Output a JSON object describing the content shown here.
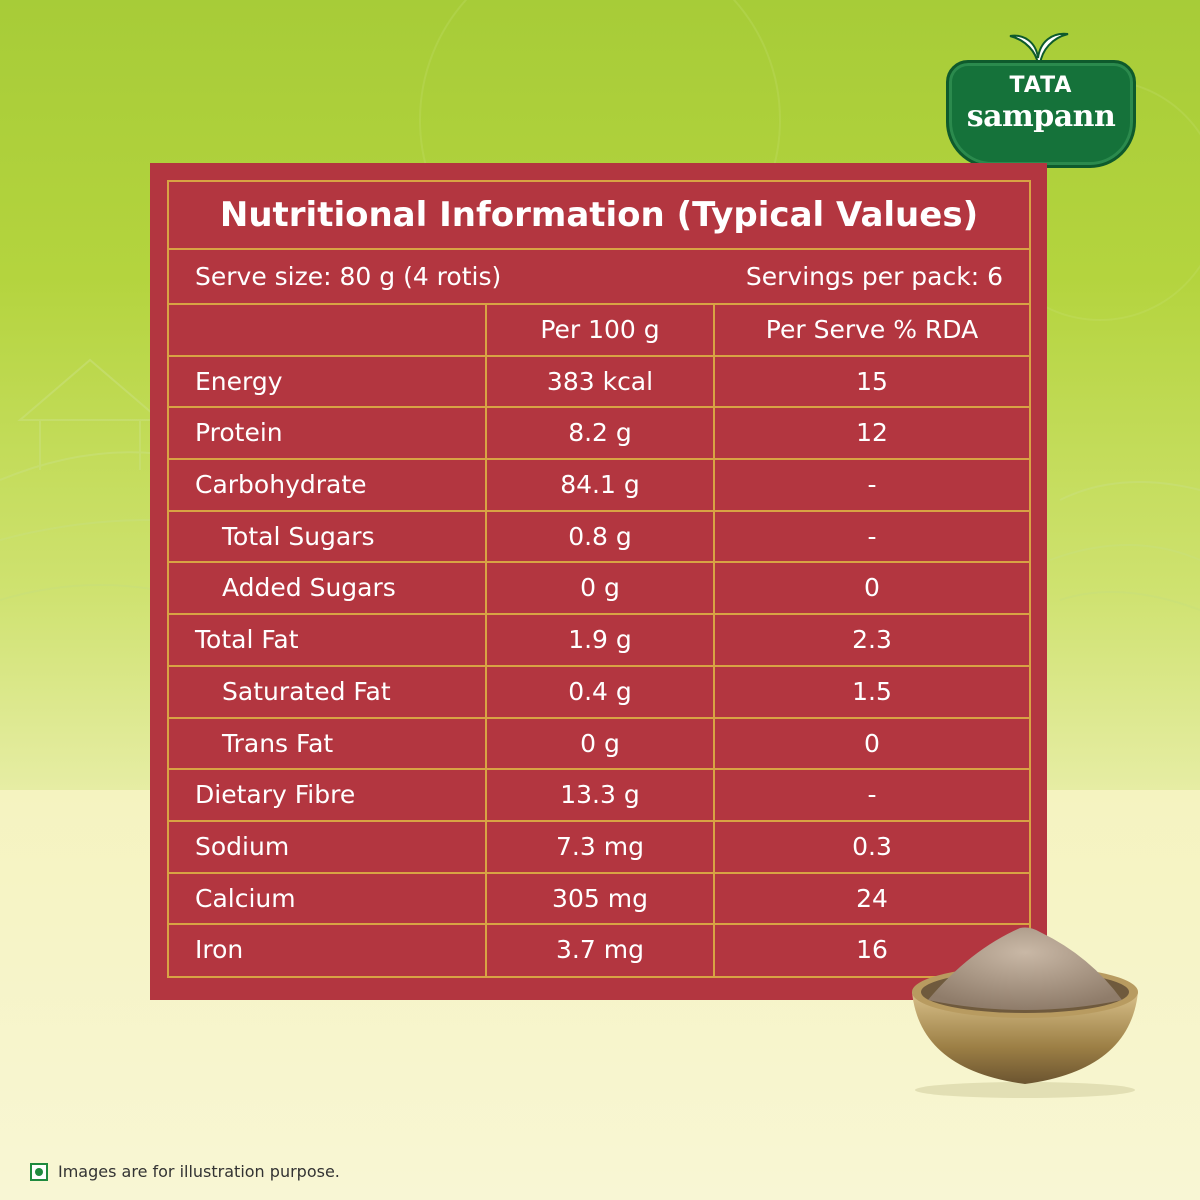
{
  "brand": {
    "line1": "TATA",
    "line2": "sampann",
    "badge_color": "#15723a"
  },
  "card": {
    "title": "Nutritional Information (Typical Values)",
    "serve_size": "Serve size: 80 g (4 rotis)",
    "servings": "Servings per pack: 6",
    "bg_color": "#b33640",
    "border_color": "#d8a344"
  },
  "table": {
    "headers": [
      "",
      "Per 100 g",
      "Per Serve % RDA"
    ],
    "rows": [
      {
        "name": "Energy",
        "per100": "383 kcal",
        "rda": "15",
        "sub": false
      },
      {
        "name": "Protein",
        "per100": "8.2 g",
        "rda": "12",
        "sub": false
      },
      {
        "name": "Carbohydrate",
        "per100": "84.1 g",
        "rda": "-",
        "sub": false
      },
      {
        "name": "Total Sugars",
        "per100": "0.8 g",
        "rda": "-",
        "sub": true
      },
      {
        "name": "Added Sugars",
        "per100": "0 g",
        "rda": "0",
        "sub": true
      },
      {
        "name": "Total Fat",
        "per100": "1.9 g",
        "rda": "2.3",
        "sub": false
      },
      {
        "name": "Saturated Fat",
        "per100": "0.4 g",
        "rda": "1.5",
        "sub": true
      },
      {
        "name": "Trans Fat",
        "per100": "0 g",
        "rda": "0",
        "sub": true
      },
      {
        "name": "Dietary Fibre",
        "per100": "13.3 g",
        "rda": "-",
        "sub": false
      },
      {
        "name": "Sodium",
        "per100": "7.3 mg",
        "rda": "0.3",
        "sub": false
      },
      {
        "name": "Calcium",
        "per100": "305 mg",
        "rda": "24",
        "sub": false
      },
      {
        "name": "Iron",
        "per100": "3.7 mg",
        "rda": "16",
        "sub": false
      }
    ]
  },
  "footer": {
    "disclaimer": "Images are for illustration purpose."
  }
}
